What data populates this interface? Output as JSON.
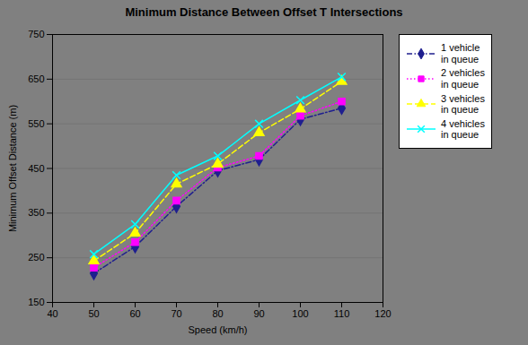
{
  "chart_data": {
    "type": "line",
    "title": "Minimum Distance Between Offset T Intersections",
    "xlabel": "Speed (km/h)",
    "ylabel": "Minimum Offset Distance (m)",
    "x": [
      50,
      60,
      70,
      80,
      90,
      100,
      110
    ],
    "xlim": [
      40,
      120
    ],
    "xticks": [
      40,
      50,
      60,
      70,
      80,
      90,
      100,
      110,
      120
    ],
    "ylim": [
      150,
      750
    ],
    "yticks": [
      150,
      250,
      350,
      450,
      550,
      650,
      750
    ],
    "grid": "y",
    "legend": "right",
    "series": [
      {
        "name": "1 vehicle\nin queue",
        "color": "#1F1F8F",
        "marker": "diamond",
        "line_style": "dashdot",
        "values": [
          215,
          275,
          365,
          445,
          470,
          560,
          585
        ]
      },
      {
        "name": "2 vehicles\nin queue",
        "color": "#FF00FF",
        "marker": "square",
        "line_style": "dotted",
        "values": [
          228,
          285,
          378,
          452,
          478,
          568,
          600
        ]
      },
      {
        "name": "3 vehicles\nin queue",
        "color": "#FFFF00",
        "marker": "triangle",
        "line_style": "dashed",
        "values": [
          243,
          305,
          415,
          460,
          530,
          583,
          645
        ]
      },
      {
        "name": "4 vehicles\nin queue",
        "color": "#00FFFF",
        "marker": "x",
        "line_style": "solid",
        "values": [
          258,
          325,
          435,
          478,
          550,
          603,
          655
        ]
      }
    ]
  }
}
